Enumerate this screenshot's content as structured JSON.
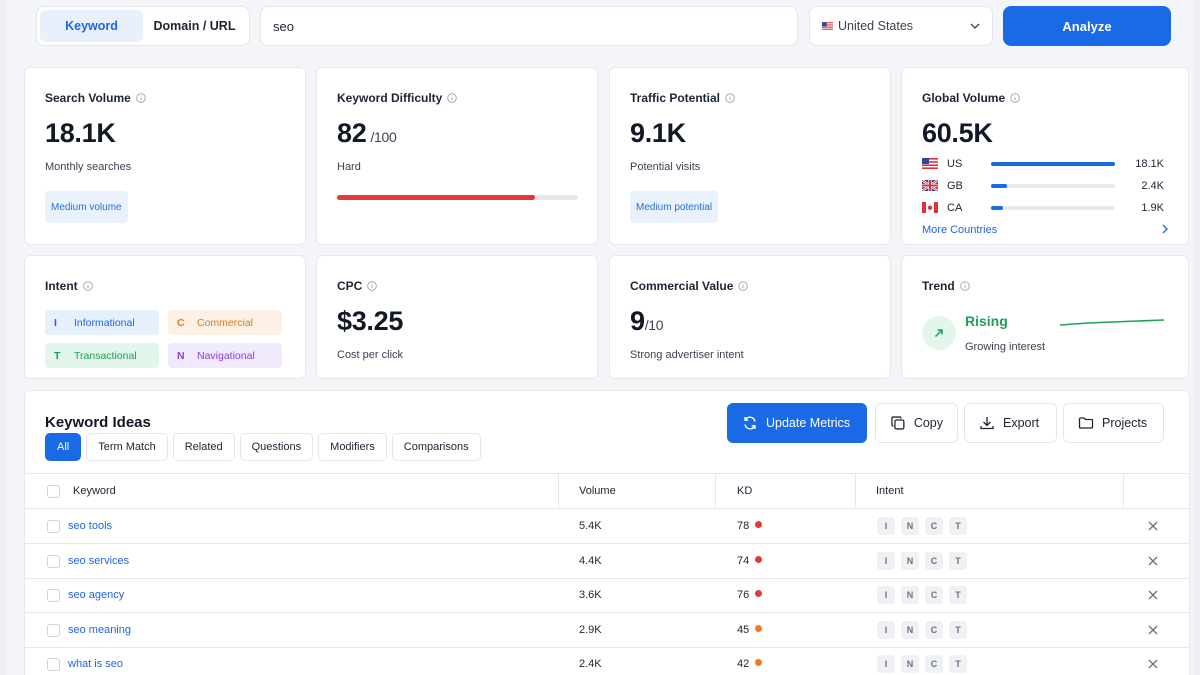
{
  "search": {
    "modes": [
      "Keyword",
      "Domain / URL"
    ],
    "active_mode": "Keyword",
    "query": "seo",
    "country": "United States",
    "analyze_label": "Analyze"
  },
  "metrics": {
    "search_volume": {
      "title": "Search Volume",
      "value": "18.1K",
      "sub": "Monthly searches",
      "badge": "Medium volume"
    },
    "keyword_difficulty": {
      "title": "Keyword Difficulty",
      "value": "82",
      "suffix": "/100",
      "sub": "Hard",
      "level": 0.82
    },
    "traffic_potential": {
      "title": "Traffic Potential",
      "value": "9.1K",
      "sub": "Potential visits",
      "badge": "Medium potential"
    },
    "global_volume": {
      "title": "Global Volume",
      "value": "60.5K",
      "countries": [
        {
          "code": "US",
          "value": "18.1K",
          "share": 1.0
        },
        {
          "code": "GB",
          "value": "2.4K",
          "share": 0.13
        },
        {
          "code": "CA",
          "value": "1.9K",
          "share": 0.1
        }
      ],
      "more_label": "More Countries"
    },
    "intent": {
      "title": "Intent",
      "tags": [
        {
          "letter": "I",
          "label": "Informational"
        },
        {
          "letter": "C",
          "label": "Commercial"
        },
        {
          "letter": "T",
          "label": "Transactional"
        },
        {
          "letter": "N",
          "label": "Navigational"
        }
      ]
    },
    "cpc": {
      "title": "CPC",
      "value": "$3.25",
      "sub": "Cost per click"
    },
    "commercial_value": {
      "title": "Commercial Value",
      "value": "9",
      "suffix": "/10",
      "sub": "Strong advertiser intent"
    },
    "trend": {
      "title": "Trend",
      "label": "Rising",
      "sub": "Growing interest"
    }
  },
  "ideas": {
    "title": "Keyword Ideas",
    "tabs": [
      "All",
      "Term Match",
      "Related",
      "Questions",
      "Modifiers",
      "Comparisons"
    ],
    "active_tab": "All",
    "actions": {
      "update": "Update Metrics",
      "copy": "Copy",
      "export": "Export",
      "projects": "Projects"
    },
    "columns": [
      "Keyword",
      "Volume",
      "KD",
      "Intent"
    ],
    "intent_letters": [
      "I",
      "N",
      "C",
      "T"
    ],
    "rows": [
      {
        "keyword": "seo tools",
        "volume": "5.4K",
        "kd": "78",
        "kd_color": "#e23a3a"
      },
      {
        "keyword": "seo services",
        "volume": "4.4K",
        "kd": "74",
        "kd_color": "#e23a3a"
      },
      {
        "keyword": "seo agency",
        "volume": "3.6K",
        "kd": "76",
        "kd_color": "#e23a3a"
      },
      {
        "keyword": "seo meaning",
        "volume": "2.9K",
        "kd": "45",
        "kd_color": "#f07a2c"
      },
      {
        "keyword": "what is seo",
        "volume": "2.4K",
        "kd": "42",
        "kd_color": "#f07a2c"
      }
    ]
  },
  "colors": {
    "accent": "#1a6ae6",
    "kd_hard": "#e23a3a",
    "rising": "#1f9e56"
  }
}
